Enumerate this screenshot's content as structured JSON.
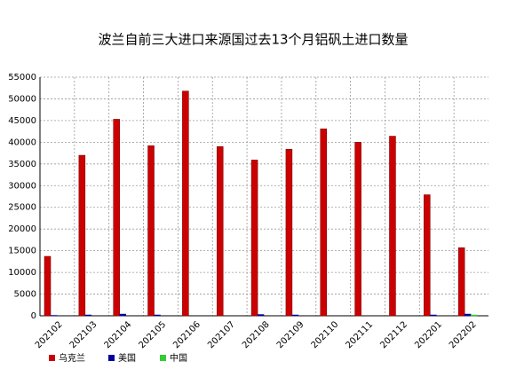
{
  "chart_data": {
    "type": "bar",
    "title": "波兰自前三大进口来源国过去13个月铝矾土进口数量",
    "categories": [
      "202102",
      "202103",
      "202104",
      "202105",
      "202106",
      "202107",
      "202108",
      "202109",
      "202110",
      "202111",
      "202112",
      "202201",
      "202202"
    ],
    "series": [
      {
        "name": "乌克兰",
        "color": "#cc0000",
        "values": [
          13700,
          37000,
          45300,
          39200,
          51800,
          39000,
          35900,
          38400,
          43100,
          40000,
          41400,
          27900,
          15700
        ]
      },
      {
        "name": "美国",
        "color": "#000099",
        "values": [
          100,
          200,
          400,
          200,
          0,
          0,
          300,
          200,
          0,
          0,
          0,
          200,
          400
        ]
      },
      {
        "name": "中国",
        "color": "#33cc33",
        "values": [
          0,
          0,
          0,
          0,
          0,
          0,
          0,
          0,
          0,
          0,
          0,
          0,
          200
        ]
      }
    ],
    "ylim": [
      0,
      55000
    ],
    "yticks": [
      0,
      5000,
      10000,
      15000,
      20000,
      25000,
      30000,
      35000,
      40000,
      45000,
      50000,
      55000
    ],
    "grid": true
  }
}
